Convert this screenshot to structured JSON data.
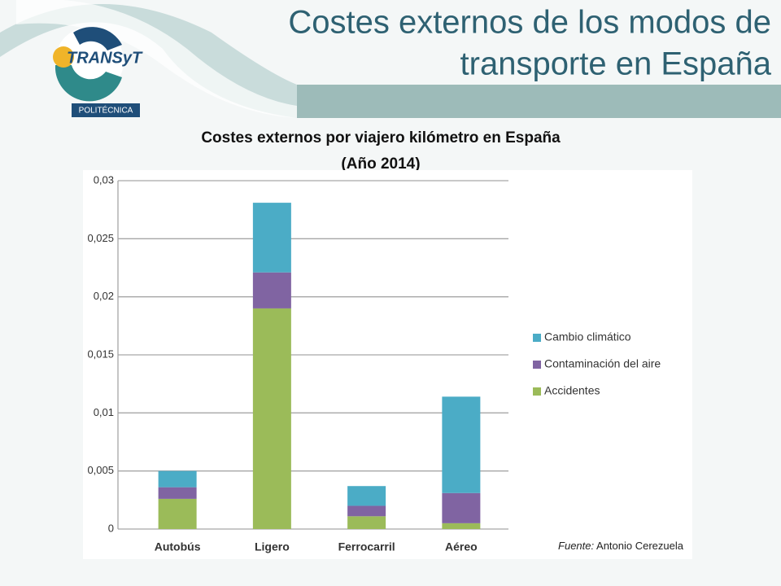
{
  "header": {
    "title_lines": [
      "Costes externos de los modos de",
      "transporte en España"
    ],
    "logo": "TRANSyT",
    "logo_sub": "POLITÉCNICA"
  },
  "chart_data": {
    "type": "stacked_bar",
    "title_lines": [
      "Costes externos por viajero kilómetro en España",
      "(Año 2014)"
    ],
    "categories": [
      "Autobús",
      "Ligero",
      "Ferrocarril",
      "Aéreo"
    ],
    "series": [
      {
        "name": "Accidentes",
        "color": "#9bbb59",
        "values": [
          0.0026,
          0.019,
          0.0011,
          0.0005
        ]
      },
      {
        "name": "Contaminación del aire",
        "color": "#8064a2",
        "values": [
          0.001,
          0.0031,
          0.0009,
          0.0026
        ]
      },
      {
        "name": "Cambio climático",
        "color": "#4bacc6",
        "values": [
          0.0014,
          0.006,
          0.0017,
          0.0083
        ]
      }
    ],
    "ylim": [
      0,
      0.03
    ],
    "yticks": [
      0,
      {
        "value": 0.005,
        "label": "0,005"
      },
      {
        "value": 0.01,
        "label": "0,01"
      },
      {
        "value": 0.015,
        "label": "0,015"
      },
      {
        "value": 0.02,
        "label": "0,02"
      },
      {
        "value": 0.025,
        "label": "0,025"
      },
      {
        "value": 0.03,
        "label": "0,03"
      }
    ],
    "grid": true,
    "legend": "right",
    "source_label": "Fuente:",
    "source": "Antonio Cerezuela"
  }
}
